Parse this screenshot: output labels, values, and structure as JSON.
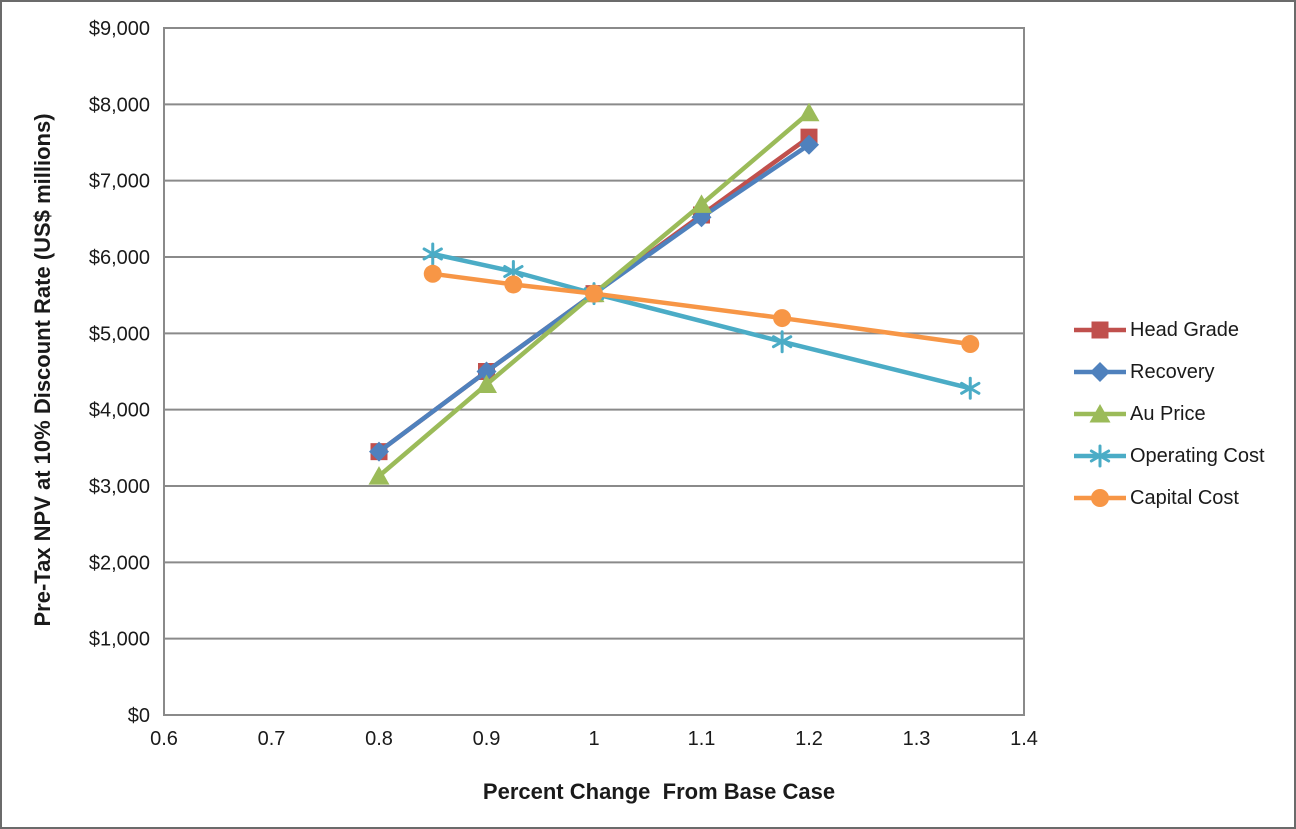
{
  "chart_data": {
    "type": "line",
    "xlabel": "Percent Change  From Base Case",
    "ylabel": "Pre-Tax NPV at 10% Discount Rate (US$ millions)",
    "xlim": [
      0.6,
      1.4
    ],
    "ylim": [
      0,
      9000
    ],
    "xticks": [
      0.6,
      0.7,
      0.8,
      0.9,
      1,
      1.1,
      1.2,
      1.3,
      1.4
    ],
    "xtick_labels": [
      "0.6",
      "0.7",
      "0.8",
      "0.9",
      "1",
      "1.1",
      "1.2",
      "1.3",
      "1.4"
    ],
    "yticks": [
      0,
      1000,
      2000,
      3000,
      4000,
      5000,
      6000,
      7000,
      8000,
      9000
    ],
    "ytick_labels": [
      "$0",
      "$1,000",
      "$2,000",
      "$3,000",
      "$4,000",
      "$5,000",
      "$6,000",
      "$7,000",
      "$8,000",
      "$9,000"
    ],
    "grid": "horizontal-only",
    "legend_position": "right",
    "grid_color": "#8a8a8a",
    "series": [
      {
        "name": "Head Grade",
        "color": "#C0504D",
        "marker": "square",
        "x": [
          0.8,
          0.9,
          1.0,
          1.1,
          1.2
        ],
        "y": [
          3450,
          4500,
          5520,
          6550,
          7570
        ]
      },
      {
        "name": "Recovery",
        "color": "#4F81BD",
        "marker": "diamond",
        "x": [
          0.8,
          0.9,
          1.0,
          1.1,
          1.2
        ],
        "y": [
          3450,
          4500,
          5520,
          6520,
          7470
        ]
      },
      {
        "name": "Au Price",
        "color": "#9BBB59",
        "marker": "triangle",
        "x": [
          0.8,
          0.9,
          1.0,
          1.1,
          1.2
        ],
        "y": [
          3130,
          4330,
          5520,
          6690,
          7890
        ]
      },
      {
        "name": "Operating Cost",
        "color": "#4BACC6",
        "marker": "asterisk",
        "x": [
          0.85,
          0.925,
          1.0,
          1.175,
          1.35
        ],
        "y": [
          6040,
          5810,
          5520,
          4890,
          4280
        ]
      },
      {
        "name": "Capital Cost",
        "color": "#F79646",
        "marker": "circle",
        "x": [
          0.85,
          0.925,
          1.0,
          1.175,
          1.35
        ],
        "y": [
          5780,
          5640,
          5520,
          5200,
          4860
        ]
      }
    ]
  }
}
